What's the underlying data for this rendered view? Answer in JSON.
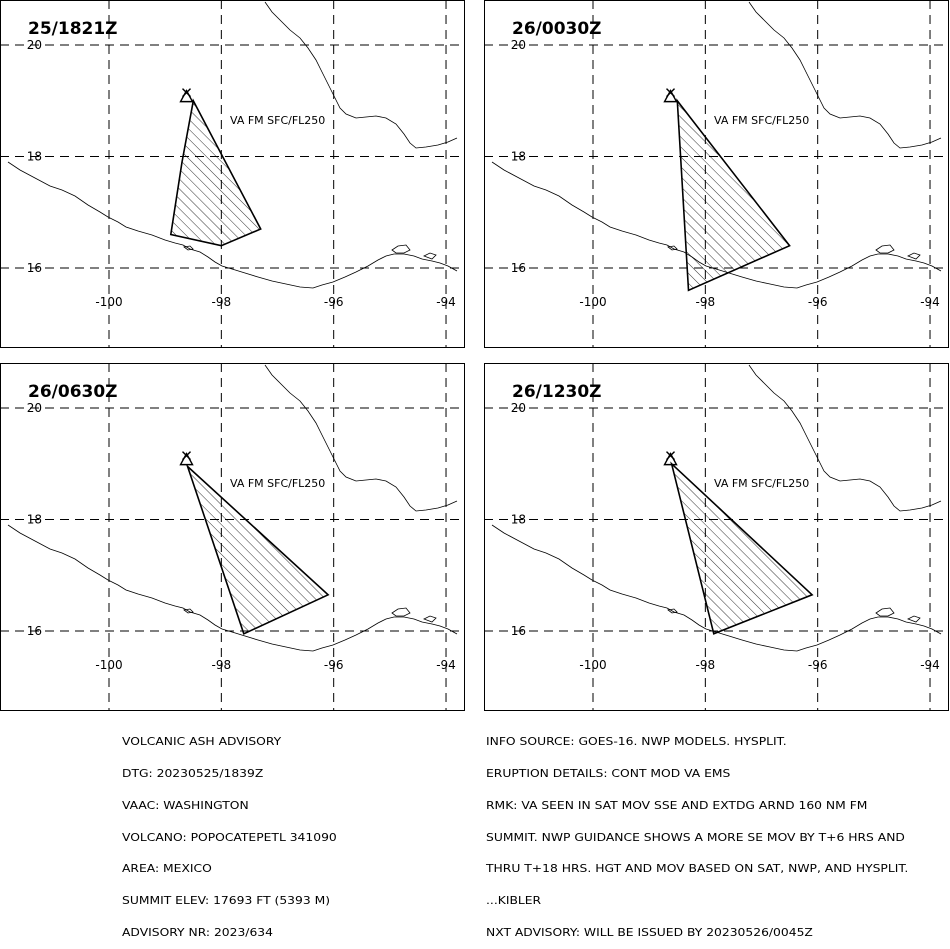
{
  "panels": [
    {
      "time": "25/1821Z",
      "label": "VA FM SFC/FL250",
      "ash": [
        [
          -98.5,
          19.0
        ],
        [
          -97.3,
          16.7
        ],
        [
          -98.0,
          16.4
        ],
        [
          -98.9,
          16.6
        ],
        [
          -98.7,
          17.9
        ],
        [
          -98.5,
          19.0
        ]
      ]
    },
    {
      "time": "26/0030Z",
      "label": "VA FM SFC/FL250",
      "ash": [
        [
          -98.5,
          19.0
        ],
        [
          -96.5,
          16.4
        ],
        [
          -98.3,
          15.6
        ],
        [
          -98.5,
          19.0
        ]
      ]
    },
    {
      "time": "26/0630Z",
      "label": "VA FM SFC/FL250",
      "ash": [
        [
          -98.6,
          18.95
        ],
        [
          -96.1,
          16.65
        ],
        [
          -97.6,
          15.95
        ],
        [
          -98.6,
          18.95
        ]
      ]
    },
    {
      "time": "26/1230Z",
      "label": "VA FM SFC/FL250",
      "ash": [
        [
          -98.6,
          19.0
        ],
        [
          -96.1,
          16.65
        ],
        [
          -97.85,
          15.95
        ],
        [
          -98.6,
          19.0
        ]
      ]
    }
  ],
  "map": {
    "lon_ticks": [
      -100,
      -98,
      -96,
      -94
    ],
    "lat_ticks": [
      16,
      18,
      20
    ],
    "lon_labels": [
      "-100",
      "-98",
      "-96",
      "-94"
    ],
    "lat_labels": [
      "16",
      "18",
      "20"
    ],
    "volcano": [
      -98.62,
      19.02
    ]
  },
  "advisory_left": [
    "VOLCANIC ASH ADVISORY",
    "DTG: 20230525/1839Z",
    "VAAC: WASHINGTON",
    "VOLCANO: POPOCATEPETL 341090",
    "AREA: MEXICO",
    "SUMMIT ELEV: 17693 FT (5393 M)",
    "ADVISORY NR: 2023/634"
  ],
  "advisory_right": [
    "INFO SOURCE: GOES-16. NWP MODELS. HYSPLIT.",
    "ERUPTION DETAILS: CONT MOD VA EMS",
    "RMK: VA SEEN IN SAT MOV SSE AND EXTDG ARND 160 NM FM",
    "SUMMIT. NWP GUIDANCE SHOWS A MORE SE MOV BY T+6 HRS AND",
    "THRU T+18 HRS. HGT AND MOV BASED ON SAT, NWP, AND HYSPLIT.",
    "...KIBLER",
    "NXT ADVISORY: WILL BE ISSUED BY 20230526/0045Z"
  ]
}
